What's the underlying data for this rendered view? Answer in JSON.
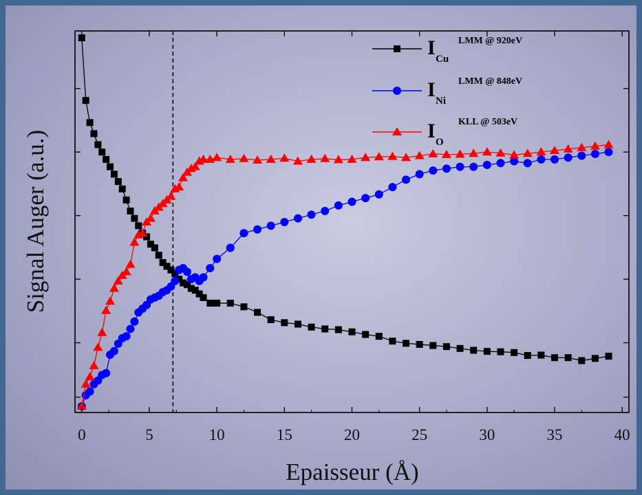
{
  "chart_data": {
    "type": "line",
    "xlabel": "Epaisseur (Å)",
    "ylabel": "Signal Auger (a.u.)",
    "xlim": [
      -0.5,
      40.5
    ],
    "ylim": [
      0,
      100
    ],
    "x_ticks": [
      "0",
      "5",
      "10",
      "15",
      "20",
      "25",
      "30",
      "35",
      "40"
    ],
    "marker_line_x": 6.75,
    "colors": {
      "cu": "#000000",
      "ni": "#0000ff",
      "o": "#ff0000"
    },
    "markers": {
      "cu": "square",
      "ni": "circle",
      "o": "triangle"
    },
    "legend_position": "top-right",
    "series": [
      {
        "key": "cu",
        "legend": {
          "main": "I",
          "sub": "Cu",
          "sup": "LMM @ 920eV"
        },
        "x": [
          0,
          0.3,
          0.6,
          0.9,
          1.2,
          1.5,
          1.8,
          2.1,
          2.4,
          2.7,
          3,
          3.3,
          3.6,
          3.9,
          4.2,
          4.5,
          4.8,
          5.1,
          5.4,
          5.7,
          6,
          6.3,
          6.6,
          6.9,
          7.2,
          7.5,
          7.8,
          8.1,
          8.4,
          8.7,
          9,
          9.5,
          10,
          11,
          12,
          13,
          14,
          15,
          16,
          17,
          18,
          19,
          20,
          21,
          22,
          23,
          24,
          25,
          26,
          27,
          28,
          29,
          30,
          31,
          32,
          33,
          34,
          35,
          36,
          37,
          38,
          39
        ],
        "y": [
          100,
          83,
          77,
          74,
          71,
          69,
          67,
          65,
          63,
          61,
          59,
          56,
          53,
          51,
          49,
          47,
          46,
          44,
          43,
          41,
          39,
          38,
          37,
          36,
          34.5,
          33.5,
          33,
          32,
          31.5,
          30.5,
          29.5,
          28,
          28,
          28,
          27,
          25.5,
          23.5,
          22.7,
          22.3,
          21.5,
          21,
          20.8,
          20.2,
          19.5,
          19,
          17.7,
          17.1,
          16.8,
          16.5,
          16.2,
          15.7,
          15.2,
          14.9,
          14.8,
          14.6,
          13.8,
          13.9,
          13.2,
          13.2,
          12.4,
          13,
          13.6
        ]
      },
      {
        "key": "ni",
        "legend": {
          "main": "I",
          "sub": "Ni",
          "sup": "LMM @ 848eV"
        },
        "x": [
          0,
          0.3,
          0.6,
          0.9,
          1.2,
          1.5,
          1.8,
          2.1,
          2.4,
          2.7,
          3,
          3.3,
          3.6,
          3.9,
          4.2,
          4.5,
          4.8,
          5.1,
          5.4,
          5.7,
          6,
          6.3,
          6.6,
          6.9,
          7.2,
          7.5,
          7.8,
          8.1,
          8.4,
          8.7,
          9,
          9.5,
          10,
          11,
          12,
          13,
          14,
          15,
          16,
          17,
          18,
          19,
          20,
          21,
          22,
          23,
          24,
          25,
          26,
          27,
          28,
          29,
          30,
          31,
          32,
          33,
          34,
          35,
          36,
          37,
          38,
          39
        ],
        "y": [
          0,
          3,
          4,
          6,
          7,
          8.5,
          9,
          14,
          15,
          17,
          18.5,
          19,
          21,
          23,
          25.5,
          26.5,
          27.5,
          29,
          29.5,
          30,
          31,
          31.5,
          32.5,
          34,
          37,
          37.5,
          36.5,
          34.5,
          35,
          34,
          35,
          37.5,
          40,
          43,
          47,
          48,
          49,
          50,
          51,
          52,
          53,
          54.5,
          55.5,
          56.5,
          57.5,
          59.5,
          61.5,
          63,
          64,
          64.5,
          65,
          65,
          65.5,
          66,
          66.5,
          66,
          67,
          67,
          67.5,
          68,
          68.5,
          69
        ]
      },
      {
        "key": "o",
        "legend": {
          "main": "I",
          "sub": "O",
          "sup": "KLL @ 503eV"
        },
        "x": [
          0,
          0.3,
          0.6,
          0.9,
          1.2,
          1.5,
          1.8,
          2.1,
          2.4,
          2.7,
          3,
          3.3,
          3.6,
          3.9,
          4.2,
          4.5,
          4.8,
          5.1,
          5.4,
          5.7,
          6,
          6.3,
          6.6,
          6.9,
          7.2,
          7.5,
          7.8,
          8.1,
          8.4,
          8.7,
          9,
          9.5,
          10,
          11,
          12,
          13,
          14,
          15,
          16,
          17,
          18,
          19,
          20,
          21,
          22,
          23,
          24,
          25,
          26,
          27,
          28,
          29,
          30,
          31,
          32,
          33,
          34,
          35,
          36,
          37,
          38,
          39
        ],
        "y": [
          0,
          6,
          8,
          11,
          16,
          20,
          26,
          28.5,
          32,
          34,
          35.5,
          36.5,
          38.5,
          44.5,
          46.5,
          47,
          50,
          51,
          53,
          54,
          55,
          56,
          57,
          59,
          59.5,
          62,
          63.5,
          64.5,
          65,
          66.5,
          67,
          67,
          67.5,
          67,
          67.2,
          66.8,
          67,
          67.3,
          66.5,
          67,
          67.2,
          66.9,
          67,
          67.5,
          67.7,
          67.8,
          67.5,
          68,
          68.5,
          68.3,
          68.4,
          68.6,
          69,
          68.7,
          68.2,
          68.6,
          69,
          69.4,
          69.8,
          70.2,
          70.6,
          71
        ]
      }
    ]
  }
}
